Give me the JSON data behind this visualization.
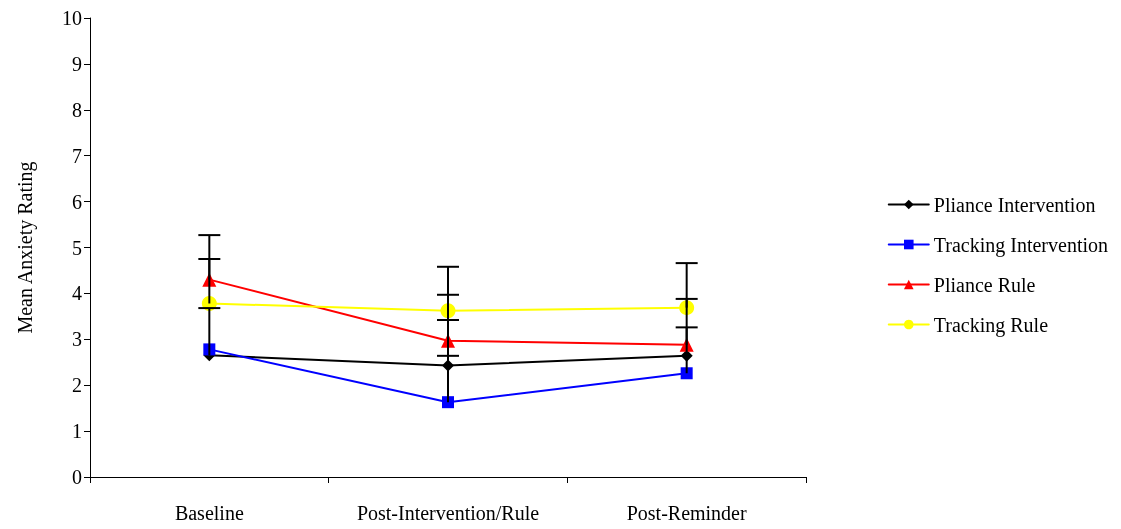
{
  "chart_data": {
    "type": "line",
    "ylabel": "Mean Anxiety Rating",
    "categories": [
      "Baseline",
      "Post-Intervention/Rule",
      "Post-Reminder"
    ],
    "series": [
      {
        "name": "Pliance Intervention",
        "color": "#000000",
        "marker": "diamond",
        "values": [
          2.65,
          2.43,
          2.64
        ],
        "errors": [
          [
            2.65,
            3.68
          ],
          [
            2.43,
            3.42
          ],
          null
        ]
      },
      {
        "name": "Tracking Intervention",
        "color": "#0000ff",
        "marker": "square",
        "values": [
          2.78,
          1.63,
          2.26
        ],
        "errors": [
          null,
          [
            1.63,
            2.64
          ],
          [
            2.26,
            3.26
          ]
        ]
      },
      {
        "name": "Pliance Rule",
        "color": "#ff0000",
        "marker": "triangle",
        "values": [
          4.3,
          2.97,
          2.88
        ],
        "errors": [
          [
            4.3,
            5.27
          ],
          [
            2.97,
            3.97
          ],
          [
            2.88,
            3.88
          ]
        ]
      },
      {
        "name": "Tracking Rule",
        "color": "#ffff00",
        "marker": "circle",
        "values": [
          3.78,
          3.62,
          3.69
        ],
        "errors": [
          [
            3.78,
            4.75
          ],
          [
            3.62,
            4.58
          ],
          [
            3.69,
            4.66
          ]
        ]
      }
    ],
    "ylim": [
      0,
      10
    ],
    "yticks": [
      0,
      1,
      2,
      3,
      4,
      5,
      6,
      7,
      8,
      9,
      10
    ],
    "grid": false,
    "legend": "right",
    "line_style": "solid"
  }
}
